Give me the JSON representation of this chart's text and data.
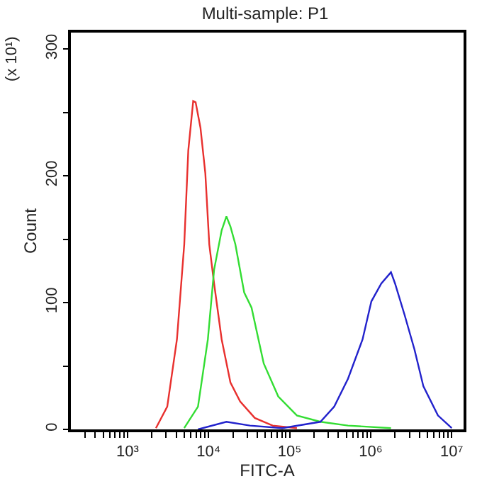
{
  "chart_data": {
    "type": "line",
    "title": "Multi-sample: P1",
    "xlabel": "FITC-A",
    "ylabel": "Count",
    "annotations": [
      "(x 10¹)"
    ],
    "log": "x",
    "marker": "none",
    "line_style": "solid",
    "xlim": [
      200,
      14000000
    ],
    "ylim": [
      0,
      313
    ],
    "xticks": [
      {
        "value": 300,
        "label": null
      },
      {
        "value": 400,
        "label": null
      },
      {
        "value": 500,
        "label": null
      },
      {
        "value": 600,
        "label": null
      },
      {
        "value": 700,
        "label": null
      },
      {
        "value": 800,
        "label": null
      },
      {
        "value": 900,
        "label": null
      },
      {
        "value": 1000,
        "label": "10³"
      },
      {
        "value": 2000,
        "label": null
      },
      {
        "value": 3000,
        "label": null
      },
      {
        "value": 4000,
        "label": null
      },
      {
        "value": 5000,
        "label": null
      },
      {
        "value": 6000,
        "label": null
      },
      {
        "value": 7000,
        "label": null
      },
      {
        "value": 8000,
        "label": null
      },
      {
        "value": 9000,
        "label": null
      },
      {
        "value": 10000,
        "label": "10⁴"
      },
      {
        "value": 20000,
        "label": null
      },
      {
        "value": 30000,
        "label": null
      },
      {
        "value": 40000,
        "label": null
      },
      {
        "value": 50000,
        "label": null
      },
      {
        "value": 60000,
        "label": null
      },
      {
        "value": 70000,
        "label": null
      },
      {
        "value": 80000,
        "label": null
      },
      {
        "value": 90000,
        "label": null
      },
      {
        "value": 100000,
        "label": "10⁵"
      },
      {
        "value": 200000,
        "label": null
      },
      {
        "value": 300000,
        "label": null
      },
      {
        "value": 400000,
        "label": null
      },
      {
        "value": 500000,
        "label": null
      },
      {
        "value": 600000,
        "label": null
      },
      {
        "value": 700000,
        "label": null
      },
      {
        "value": 800000,
        "label": null
      },
      {
        "value": 900000,
        "label": null
      },
      {
        "value": 1000000,
        "label": "10⁶"
      },
      {
        "value": 2000000,
        "label": null
      },
      {
        "value": 3000000,
        "label": null
      },
      {
        "value": 4000000,
        "label": null
      },
      {
        "value": 5000000,
        "label": null
      },
      {
        "value": 6000000,
        "label": null
      },
      {
        "value": 7000000,
        "label": null
      },
      {
        "value": 8000000,
        "label": null
      },
      {
        "value": 9000000,
        "label": null
      },
      {
        "value": 10000000,
        "label": "10⁷"
      }
    ],
    "yticks": [
      0,
      {
        "value": 50,
        "label": null
      },
      100,
      {
        "value": 150,
        "label": null
      },
      200,
      {
        "value": 250,
        "label": null
      },
      300
    ],
    "series": [
      {
        "color": "#e8302e",
        "x": [
          2240,
          3090,
          4070,
          5010,
          5620,
          6460,
          6920,
          7940,
          9120,
          10200,
          11700,
          14500,
          18600,
          24500,
          37200,
          61700,
          123000
        ],
        "values": [
          1,
          18,
          71,
          146,
          220,
          259,
          258,
          238,
          202,
          146,
          115,
          71,
          37,
          22,
          9,
          3,
          1
        ]
      },
      {
        "color": "#33dd33",
        "x": [
          5000,
          7400,
          9800,
          11700,
          14500,
          16600,
          18600,
          21400,
          27500,
          33900,
          47900,
          72400,
          123000,
          240000,
          525000,
          1780000
        ],
        "values": [
          1,
          18,
          71,
          126,
          157,
          168,
          160,
          146,
          108,
          96,
          52,
          26,
          11,
          6,
          3,
          1
        ]
      },
      {
        "color": "#2222cc",
        "x": [
          7400,
          16600,
          32400,
          81300,
          240000,
          355000,
          525000,
          794000,
          1020000,
          1350000,
          1780000,
          2000000,
          2630000,
          3470000,
          4470000,
          6760000,
          10000000
        ],
        "values": [
          0,
          6,
          3,
          1,
          6,
          18,
          40,
          71,
          101,
          115,
          124,
          115,
          90,
          63,
          34,
          11,
          1
        ]
      }
    ]
  }
}
